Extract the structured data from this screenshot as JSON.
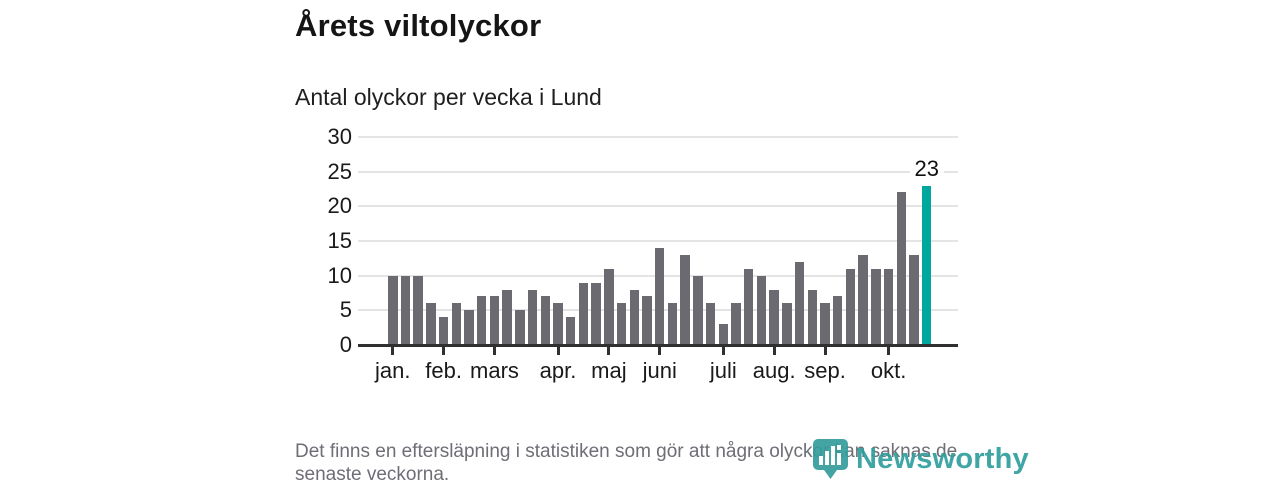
{
  "page": {
    "title": "Årets viltolyckor",
    "subtitle": "Antal olyckor per vecka i Lund",
    "footer_note": "Det finns en eftersläpning i statistiken som gör att några olyckor kan saknas de senaste veckorna.",
    "logo_text": "Newsworthy"
  },
  "chart_data": {
    "type": "bar",
    "title": "Årets viltolyckor",
    "subtitle": "Antal olyckor per vecka i Lund",
    "xlabel": "",
    "ylabel": "",
    "ylim": [
      0,
      30
    ],
    "yticks": [
      0,
      5,
      10,
      15,
      20,
      25,
      30
    ],
    "grid": true,
    "legend_position": "none",
    "x_unit": "vecka",
    "values": [
      10,
      10,
      10,
      6,
      4,
      6,
      5,
      7,
      7,
      8,
      5,
      8,
      7,
      6,
      4,
      9,
      9,
      11,
      6,
      8,
      7,
      14,
      6,
      13,
      10,
      6,
      3,
      6,
      11,
      10,
      8,
      6,
      12,
      8,
      6,
      7,
      11,
      13,
      11,
      11,
      22,
      13,
      23
    ],
    "month_tick_labels": [
      "jan.",
      "feb.",
      "mars",
      "apr.",
      "maj",
      "juni",
      "juli",
      "aug.",
      "sep.",
      "okt."
    ],
    "month_start_bar_index": [
      0,
      4,
      8,
      13,
      17,
      21,
      26,
      30,
      34,
      39
    ],
    "highlight": {
      "index": 42,
      "value": 23,
      "label": "23"
    },
    "colors": {
      "bar": "#6a6a70",
      "highlight_bar": "#00a79e",
      "axis": "#303030",
      "gridline": "#e4e4e4",
      "tick_text": "#1a1a1a",
      "footer_text": "#6e6e76",
      "logo_teal": "#2f9e9e"
    }
  }
}
